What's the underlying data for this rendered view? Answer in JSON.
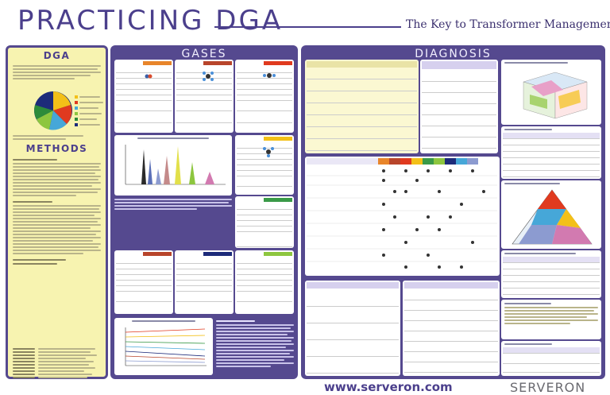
{
  "header": {
    "title": "PRACTICING DGA",
    "subtitle": "The Key to Transformer Management"
  },
  "sections": {
    "dga": "DGA",
    "methods": "METHODS",
    "gases": "GASES",
    "diagnosis": "DIAGNOSIS"
  },
  "footer": {
    "url": "www.serveron.com",
    "brand": "SERVERON"
  },
  "colors": {
    "accent": "#55498f",
    "panel_bg": "#f7f3b0",
    "brand_gray": "#6a6a70"
  }
}
